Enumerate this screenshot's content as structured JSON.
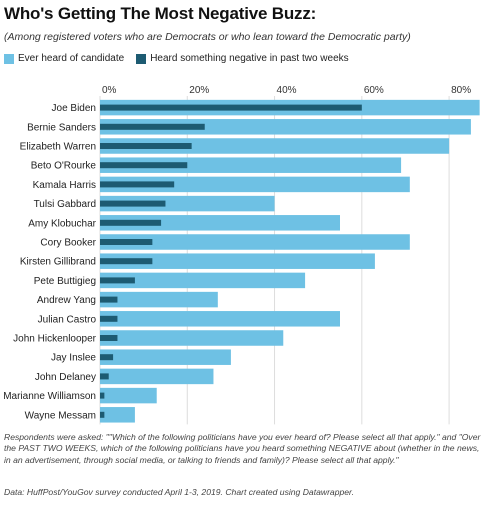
{
  "header": {
    "title": "Who's Getting The Most Negative Buzz:",
    "subtitle": "(Among registered voters who are Democrats or who lean toward the Democratic party)"
  },
  "legend": {
    "items": [
      {
        "label": "Ever heard of candidate",
        "color": "#6ec1e4"
      },
      {
        "label": "Heard something negative in past two weeks",
        "color": "#1d5b72"
      }
    ]
  },
  "chart_data": {
    "type": "bar",
    "orientation": "horizontal",
    "title": "Who's Getting The Most Negative Buzz:",
    "subtitle": "(Among registered voters who are Democrats or who lean toward the Democratic party)",
    "xlim": [
      0,
      88
    ],
    "x_ticks": [
      0,
      20,
      40,
      60,
      80
    ],
    "x_tick_labels": [
      "0%",
      "20%",
      "40%",
      "60%",
      "80%"
    ],
    "grid": true,
    "legend_position": "top-left",
    "categories": [
      "Joe Biden",
      "Bernie Sanders",
      "Elizabeth Warren",
      "Beto O'Rourke",
      "Kamala Harris",
      "Tulsi Gabbard",
      "Amy Klobuchar",
      "Cory Booker",
      "Kirsten Gillibrand",
      "Pete Buttigieg",
      "Andrew Yang",
      "Julian Castro",
      "John Hickenlooper",
      "Jay Inslee",
      "John Delaney",
      "Marianne Williamson",
      "Wayne Messam"
    ],
    "series": [
      {
        "name": "Ever heard of candidate",
        "color": "#6ec1e4",
        "values": [
          87,
          85,
          80,
          69,
          71,
          40,
          55,
          71,
          63,
          47,
          27,
          55,
          42,
          30,
          26,
          13,
          8
        ]
      },
      {
        "name": "Heard something negative in past two weeks",
        "color": "#1d5b72",
        "values": [
          60,
          24,
          21,
          20,
          17,
          15,
          14,
          12,
          12,
          8,
          4,
          4,
          4,
          3,
          2,
          1,
          1
        ]
      }
    ]
  },
  "footer": {
    "notes": "Respondents were asked: \"\"Which of the following politicians have you ever heard of? Please select all that apply.\" and \"Over the PAST TWO WEEKS, which of the following politicians have you heard something NEGATIVE about (whether in the news, in an advertisement, through social media, or talking to friends and family)? Please select all that apply.\"",
    "source": "Data: HuffPost/YouGov survey conducted April 1-3, 2019. Chart created using Datawrapper."
  }
}
